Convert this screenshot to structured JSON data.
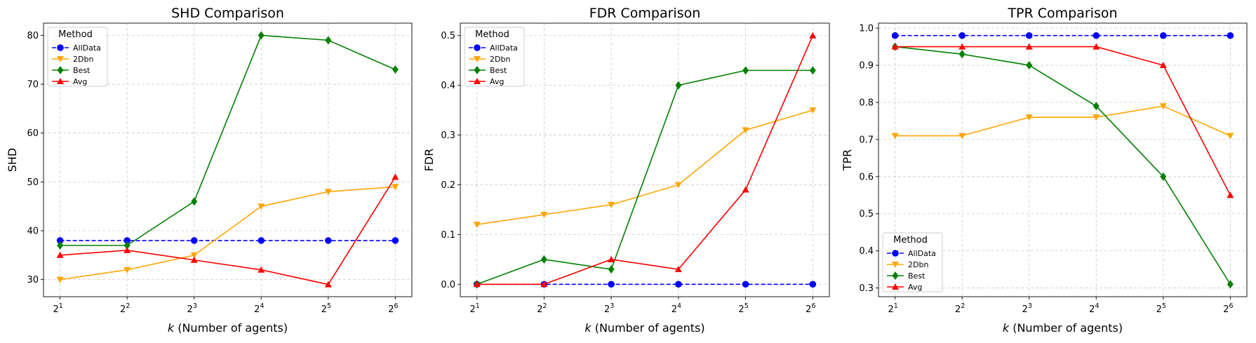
{
  "chart_data": [
    {
      "type": "line",
      "title": "SHD Comparison",
      "xlabel_var": "k",
      "xlabel_rest": " (Number of agents)",
      "ylabel": "SHD",
      "x_tick_labels": [
        {
          "base": "2",
          "exp": "1"
        },
        {
          "base": "2",
          "exp": "2"
        },
        {
          "base": "2",
          "exp": "3"
        },
        {
          "base": "2",
          "exp": "4"
        },
        {
          "base": "2",
          "exp": "5"
        },
        {
          "base": "2",
          "exp": "6"
        }
      ],
      "ylim": [
        26.5,
        82.5
      ],
      "yticks": [
        30,
        40,
        50,
        60,
        70,
        80
      ],
      "ytick_labels": [
        "30",
        "40",
        "50",
        "60",
        "70",
        "80"
      ],
      "grid": true,
      "legend_title": "Method",
      "legend_position": "top-left",
      "series": [
        {
          "name": "AllData",
          "values": [
            38,
            38,
            38,
            38,
            38,
            38
          ],
          "color": "#0000ff",
          "marker": "circle",
          "dashed": true
        },
        {
          "name": "2Dbn",
          "values": [
            30,
            32,
            35,
            45,
            48,
            49
          ],
          "color": "#ffa500",
          "marker": "triangle-down",
          "dashed": false
        },
        {
          "name": "Best",
          "values": [
            37,
            37,
            46,
            80,
            79,
            73
          ],
          "color": "#008000",
          "marker": "diamond",
          "dashed": false
        },
        {
          "name": "Avg",
          "values": [
            35,
            36,
            34,
            32,
            29,
            51
          ],
          "color": "#ff0000",
          "marker": "triangle-up",
          "dashed": false
        }
      ]
    },
    {
      "type": "line",
      "title": "FDR Comparison",
      "xlabel_var": "k",
      "xlabel_rest": " (Number of agents)",
      "ylabel": "FDR",
      "x_tick_labels": [
        {
          "base": "2",
          "exp": "1"
        },
        {
          "base": "2",
          "exp": "2"
        },
        {
          "base": "2",
          "exp": "3"
        },
        {
          "base": "2",
          "exp": "4"
        },
        {
          "base": "2",
          "exp": "5"
        },
        {
          "base": "2",
          "exp": "6"
        }
      ],
      "ylim": [
        -0.025,
        0.525
      ],
      "yticks": [
        0,
        0.1,
        0.2,
        0.3,
        0.4,
        0.5
      ],
      "ytick_labels": [
        "0.0",
        "0.1",
        "0.2",
        "0.3",
        "0.4",
        "0.5"
      ],
      "grid": true,
      "legend_title": "Method",
      "legend_position": "top-left",
      "series": [
        {
          "name": "AllData",
          "values": [
            0,
            0,
            0,
            0,
            0,
            0
          ],
          "color": "#0000ff",
          "marker": "circle",
          "dashed": true
        },
        {
          "name": "2Dbn",
          "values": [
            0.12,
            0.14,
            0.16,
            0.2,
            0.31,
            0.35
          ],
          "color": "#ffa500",
          "marker": "triangle-down",
          "dashed": false
        },
        {
          "name": "Best",
          "values": [
            0,
            0.05,
            0.03,
            0.4,
            0.43,
            0.43
          ],
          "color": "#008000",
          "marker": "diamond",
          "dashed": false
        },
        {
          "name": "Avg",
          "values": [
            0,
            0,
            0.05,
            0.03,
            0.19,
            0.5
          ],
          "color": "#ff0000",
          "marker": "triangle-up",
          "dashed": false
        }
      ]
    },
    {
      "type": "line",
      "title": "TPR Comparison",
      "xlabel_var": "k",
      "xlabel_rest": " (Number of agents)",
      "ylabel": "TPR",
      "x_tick_labels": [
        {
          "base": "2",
          "exp": "1"
        },
        {
          "base": "2",
          "exp": "2"
        },
        {
          "base": "2",
          "exp": "3"
        },
        {
          "base": "2",
          "exp": "4"
        },
        {
          "base": "2",
          "exp": "5"
        },
        {
          "base": "2",
          "exp": "6"
        }
      ],
      "ylim": [
        0.2765,
        1.0135
      ],
      "yticks": [
        0.3,
        0.4,
        0.5,
        0.6,
        0.7,
        0.8,
        0.9,
        1.0
      ],
      "ytick_labels": [
        "0.3",
        "0.4",
        "0.5",
        "0.6",
        "0.7",
        "0.8",
        "0.9",
        "1.0"
      ],
      "grid": true,
      "legend_title": "Method",
      "legend_position": "bottom-left",
      "series": [
        {
          "name": "AllData",
          "values": [
            0.98,
            0.98,
            0.98,
            0.98,
            0.98,
            0.98
          ],
          "color": "#0000ff",
          "marker": "circle",
          "dashed": true
        },
        {
          "name": "2Dbn",
          "values": [
            0.71,
            0.71,
            0.76,
            0.76,
            0.79,
            0.71
          ],
          "color": "#ffa500",
          "marker": "triangle-down",
          "dashed": false
        },
        {
          "name": "Best",
          "values": [
            0.95,
            0.93,
            0.9,
            0.79,
            0.6,
            0.31
          ],
          "color": "#008000",
          "marker": "diamond",
          "dashed": false
        },
        {
          "name": "Avg",
          "values": [
            0.95,
            0.95,
            0.95,
            0.95,
            0.9,
            0.55
          ],
          "color": "#ff0000",
          "marker": "triangle-up",
          "dashed": false
        }
      ]
    }
  ]
}
